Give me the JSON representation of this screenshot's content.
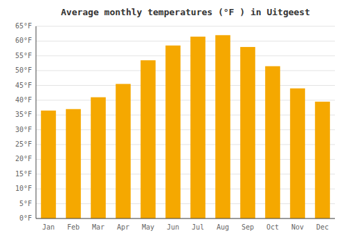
{
  "chart_data": {
    "type": "bar",
    "title": "Average monthly temperatures (°F ) in Uitgeest",
    "categories": [
      "Jan",
      "Feb",
      "Mar",
      "Apr",
      "May",
      "Jun",
      "Jul",
      "Aug",
      "Sep",
      "Oct",
      "Nov",
      "Dec"
    ],
    "values": [
      36.5,
      37.0,
      41.0,
      45.5,
      53.5,
      58.5,
      61.5,
      62.0,
      58.0,
      51.5,
      44.0,
      39.5
    ],
    "color": "#F5A800",
    "ylim": [
      0,
      65
    ],
    "yticks": [
      {
        "value": 0,
        "label": "0°F"
      },
      {
        "value": 5,
        "label": "5°F"
      },
      {
        "value": 10,
        "label": "10°F"
      },
      {
        "value": 15,
        "label": "15°F"
      },
      {
        "value": 20,
        "label": "20°F"
      },
      {
        "value": 25,
        "label": "25°F"
      },
      {
        "value": 30,
        "label": "30°F"
      },
      {
        "value": 35,
        "label": "35°F"
      },
      {
        "value": 40,
        "label": "40°F"
      },
      {
        "value": 45,
        "label": "45°F"
      },
      {
        "value": 50,
        "label": "50°F"
      },
      {
        "value": 55,
        "label": "55°F"
      },
      {
        "value": 60,
        "label": "60°F"
      },
      {
        "value": 65,
        "label": "65°F"
      }
    ],
    "grid": true
  }
}
